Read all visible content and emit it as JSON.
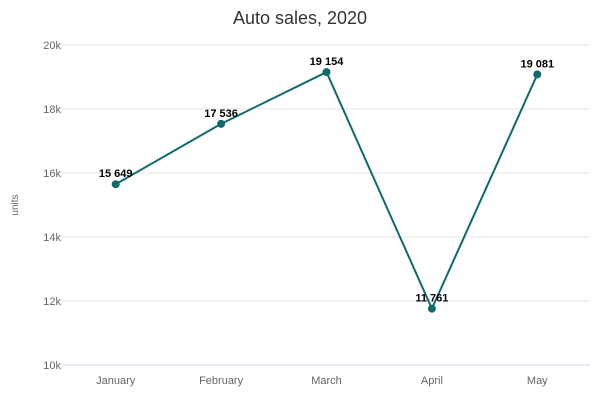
{
  "chart_data": {
    "type": "line",
    "title": "Auto sales, 2020",
    "xlabel": "",
    "ylabel": "units",
    "categories": [
      "January",
      "February",
      "March",
      "April",
      "May"
    ],
    "series": [
      {
        "values": [
          15649,
          17536,
          19154,
          11761,
          19081
        ],
        "data_labels": [
          "15 649",
          "17 536",
          "19 154",
          "11 761",
          "19 081"
        ],
        "color": "#0f6b6b"
      }
    ],
    "ylim": [
      10000,
      20000
    ],
    "yticks": [
      10000,
      12000,
      14000,
      16000,
      18000,
      20000
    ],
    "ytick_labels": [
      "10k",
      "12k",
      "14k",
      "16k",
      "18k",
      "20k"
    ],
    "grid": true,
    "legend": "none"
  }
}
